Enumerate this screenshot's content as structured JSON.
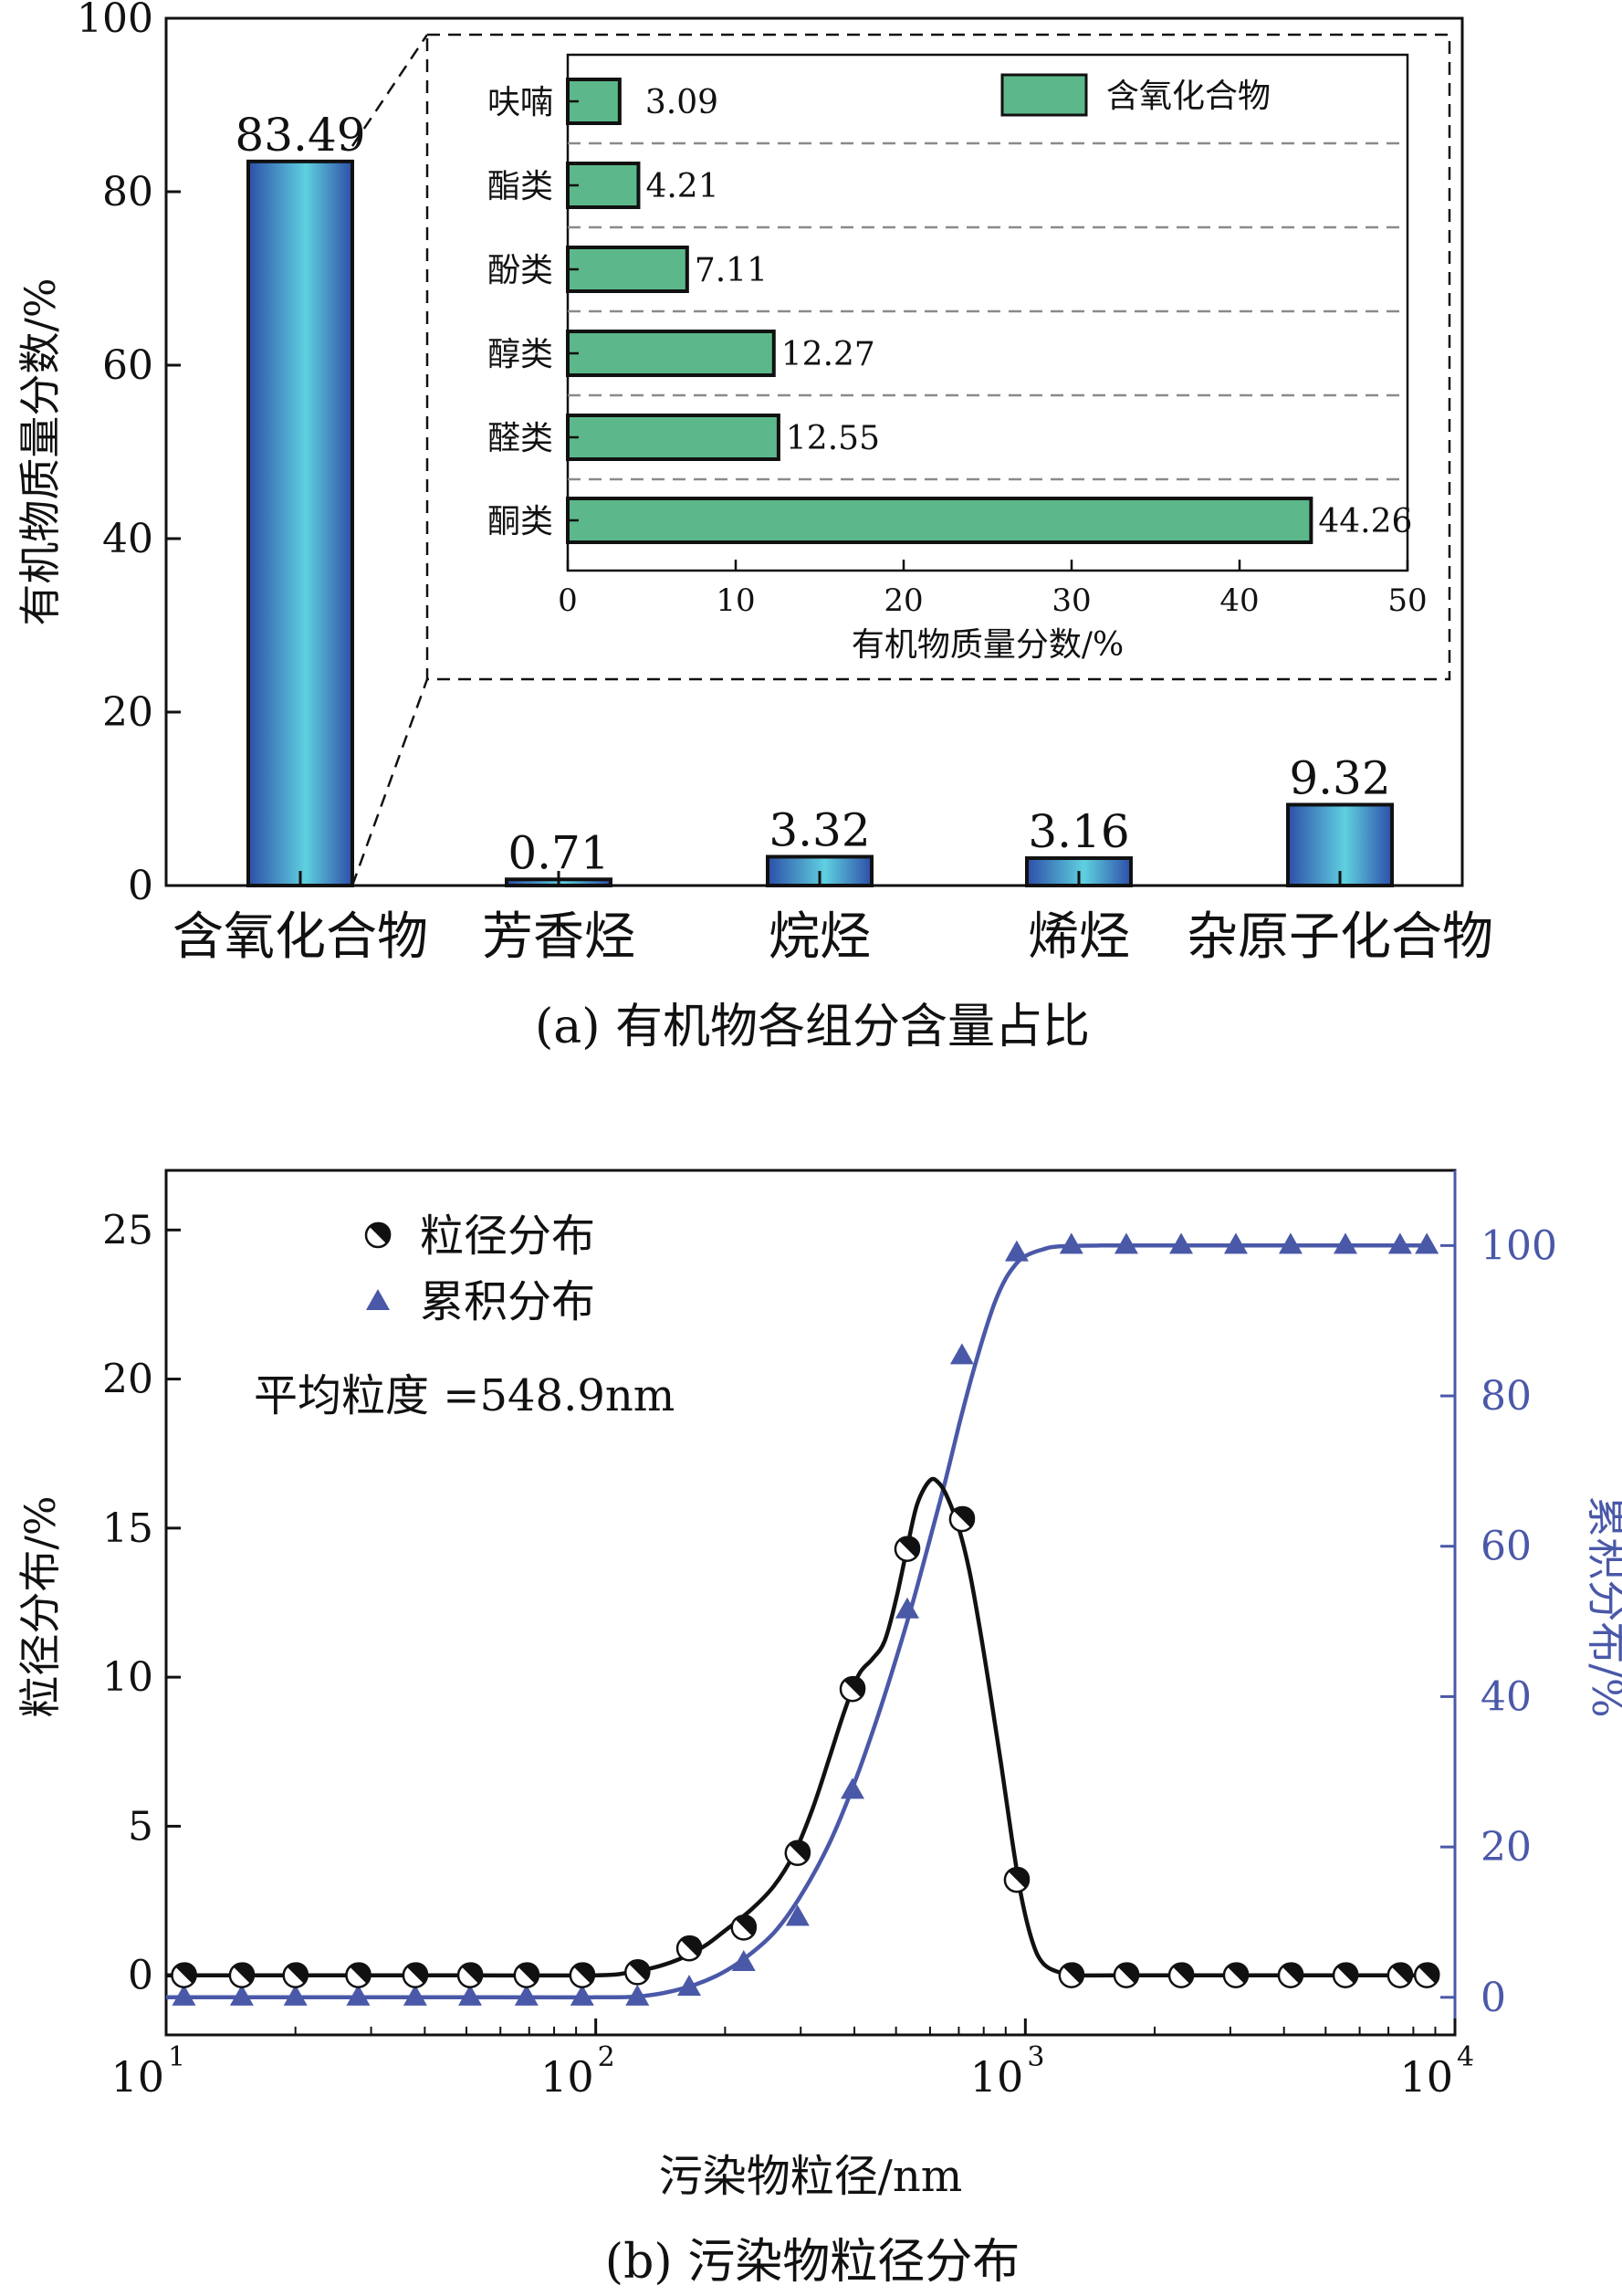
{
  "colors": {
    "bar_dark": "#2d4fa8",
    "bar_light": "#5fd0e0",
    "inset_bar": "#5cb88a",
    "cumulative": "#4a58a8",
    "axis": "#111111"
  },
  "chart_data": [
    {
      "type": "bar",
      "caption": "(a) 有机物各组分含量占比",
      "ylabel": "有机物质量分数/%",
      "ylim": [
        0,
        100
      ],
      "yticks": [
        0,
        20,
        40,
        60,
        80,
        100
      ],
      "categories": [
        "含氧化合物",
        "芳香烃",
        "烷烃",
        "烯烃",
        "杂原子化合物"
      ],
      "values": [
        83.49,
        0.71,
        3.32,
        3.16,
        9.32
      ],
      "value_labels": [
        "83.49",
        "0.71",
        "3.32",
        "3.16",
        "9.32"
      ],
      "inset": {
        "type": "bar",
        "orientation": "horizontal",
        "legend": "含氧化合物",
        "legend_position": "top-right",
        "xlabel": "有机物质量分数/%",
        "xlim": [
          0,
          50
        ],
        "xticks": [
          0,
          10,
          20,
          30,
          40,
          50
        ],
        "grid": true,
        "categories": [
          "呋喃",
          "酯类",
          "酚类",
          "醇类",
          "醛类",
          "酮类"
        ],
        "values": [
          3.09,
          4.21,
          7.11,
          12.27,
          12.55,
          44.26
        ],
        "value_labels": [
          "3.09",
          "4.21",
          "7.11",
          "12.27",
          "12.55",
          "44.26"
        ]
      }
    },
    {
      "type": "line",
      "caption": "(b) 污染物粒径分布",
      "xlabel": "污染物粒径/nm",
      "x_scale": "log",
      "xlim": [
        10,
        10000
      ],
      "xtick_labels": [
        {
          "base": "10",
          "exp": "1"
        },
        {
          "base": "10",
          "exp": "2"
        },
        {
          "base": "10",
          "exp": "3"
        },
        {
          "base": "10",
          "exp": "4"
        }
      ],
      "ylabel_left": "粒径分布/%",
      "ylim_left": [
        -2,
        27
      ],
      "yticks_left": [
        0,
        5,
        10,
        15,
        20,
        25
      ],
      "ylabel_right": "累积分布/%",
      "ylim_right": [
        -5,
        110
      ],
      "yticks_right": [
        0,
        20,
        40,
        60,
        80,
        100
      ],
      "legend_position": "top-left",
      "annotation": "平均粒度 =548.9nm",
      "series": [
        {
          "name": "粒径分布",
          "axis": "left",
          "marker": "circle-half",
          "x": [
            11,
            15,
            20,
            28,
            38,
            51,
            69,
            93,
            125,
            165,
            221,
            295,
            396,
            531,
            712,
            955,
            1280,
            1718,
            2305,
            3090,
            4144,
            5560,
            7450,
            8600
          ],
          "y": [
            0,
            0,
            0,
            0,
            0,
            0,
            0,
            0,
            0.1,
            0.9,
            1.6,
            4.1,
            9.6,
            14.3,
            15.3,
            3.2,
            0,
            0,
            0,
            0,
            0,
            0,
            0,
            0
          ],
          "curve_x": [
            10,
            20,
            50,
            100,
            120,
            140,
            160,
            180,
            200,
            230,
            260,
            290,
            320,
            350,
            380,
            410,
            440,
            470,
            500,
            530,
            560,
            600,
            630,
            660,
            700,
            740,
            780,
            830,
            880,
            930,
            980,
            1040,
            1100,
            1200,
            1350,
            1600,
            2500,
            5000,
            8600
          ],
          "curve_y": [
            0,
            0,
            0,
            0,
            0.1,
            0.3,
            0.6,
            1.0,
            1.5,
            2.2,
            3.0,
            4.1,
            5.6,
            7.3,
            8.9,
            10.1,
            10.6,
            11.2,
            12.6,
            14.3,
            15.8,
            16.6,
            16.5,
            16.0,
            15.0,
            13.6,
            11.8,
            9.4,
            7.0,
            4.6,
            2.6,
            1.1,
            0.4,
            0.1,
            0,
            0,
            0,
            0,
            0
          ]
        },
        {
          "name": "累积分布",
          "axis": "right",
          "marker": "triangle",
          "x": [
            11,
            15,
            20,
            28,
            38,
            51,
            69,
            93,
            125,
            165,
            221,
            295,
            396,
            531,
            712,
            955,
            1280,
            1718,
            2305,
            3090,
            4144,
            5560,
            7450,
            8600
          ],
          "y": [
            0,
            0,
            0,
            0,
            0,
            0,
            0,
            0,
            0,
            1.3,
            4.6,
            10.6,
            27.5,
            51.5,
            85.3,
            99.0,
            100,
            100,
            100,
            100,
            100,
            100,
            100,
            100
          ],
          "curve_x": [
            10,
            50,
            100,
            130,
            160,
            190,
            220,
            260,
            300,
            350,
            400,
            450,
            500,
            550,
            600,
            650,
            700,
            750,
            800,
            850,
            900,
            950,
            1000,
            1100,
            1200,
            1500,
            3000,
            8600
          ],
          "curve_y": [
            0,
            0,
            0,
            0.2,
            1.2,
            2.8,
            5.0,
            8.6,
            13.5,
            20.5,
            28.5,
            36.8,
            45.0,
            53.0,
            61.0,
            68.5,
            76.0,
            82.5,
            88.0,
            92.5,
            95.6,
            97.5,
            98.6,
            99.5,
            99.9,
            100,
            100,
            100
          ]
        }
      ]
    }
  ]
}
